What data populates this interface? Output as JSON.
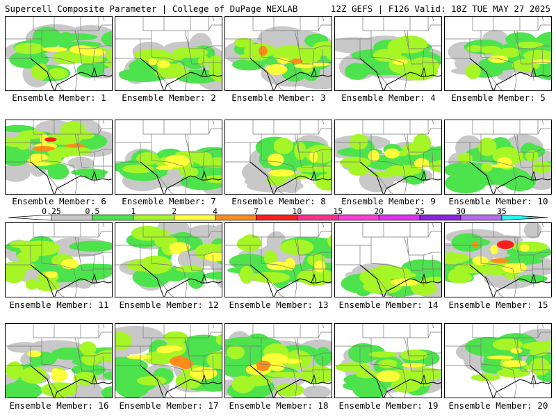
{
  "header": {
    "title_left": "Supercell Composite Parameter | College of DuPage NEXLAB",
    "title_right": "12Z GEFS | F126 Valid: 18Z TUE MAY 27 2025"
  },
  "legend": {
    "levels": [
      "0.25",
      "0.5",
      "1",
      "2",
      "4",
      "7",
      "10",
      "15",
      "20",
      "25",
      "30",
      "35"
    ],
    "colors": [
      "#c8c8c8",
      "#4de34d",
      "#a6f527",
      "#ffff3a",
      "#ff8c1a",
      "#ff1e1e",
      "#ff2e8e",
      "#ff3ad8",
      "#e22ef5",
      "#8c21e8",
      "#b46bea",
      "#2ef5f0"
    ]
  },
  "panels": [
    {
      "label": "Ensemble Member: 1"
    },
    {
      "label": "Ensemble Member: 2"
    },
    {
      "label": "Ensemble Member: 3"
    },
    {
      "label": "Ensemble Member: 4"
    },
    {
      "label": "Ensemble Member: 5"
    },
    {
      "label": "Ensemble Member: 6"
    },
    {
      "label": "Ensemble Member: 7"
    },
    {
      "label": "Ensemble Member: 8"
    },
    {
      "label": "Ensemble Member: 9"
    },
    {
      "label": "Ensemble Member: 10"
    },
    {
      "label": "Ensemble Member: 11"
    },
    {
      "label": "Ensemble Member: 12"
    },
    {
      "label": "Ensemble Member: 13"
    },
    {
      "label": "Ensemble Member: 14"
    },
    {
      "label": "Ensemble Member: 15"
    },
    {
      "label": "Ensemble Member: 16"
    },
    {
      "label": "Ensemble Member: 17"
    },
    {
      "label": "Ensemble Member: 18"
    },
    {
      "label": "Ensemble Member: 19"
    },
    {
      "label": "Ensemble Member: 20"
    }
  ]
}
